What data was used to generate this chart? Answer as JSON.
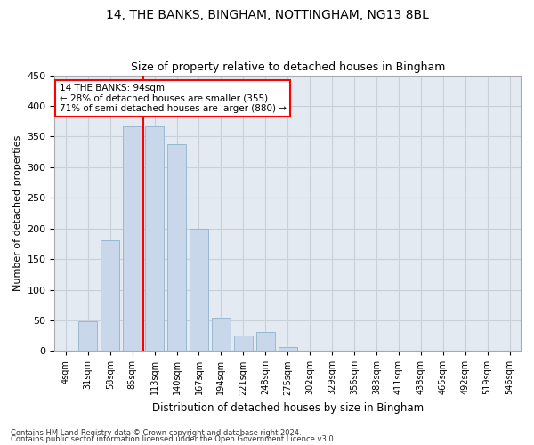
{
  "title": "14, THE BANKS, BINGHAM, NOTTINGHAM, NG13 8BL",
  "subtitle": "Size of property relative to detached houses in Bingham",
  "xlabel": "Distribution of detached houses by size in Bingham",
  "ylabel": "Number of detached properties",
  "bar_color": "#c8d8ea",
  "bar_edgecolor": "#9ab8d0",
  "grid_color": "#c8d0dc",
  "bg_color": "#e4eaf2",
  "categories": [
    "4sqm",
    "31sqm",
    "58sqm",
    "85sqm",
    "113sqm",
    "140sqm",
    "167sqm",
    "194sqm",
    "221sqm",
    "248sqm",
    "275sqm",
    "302sqm",
    "329sqm",
    "356sqm",
    "383sqm",
    "411sqm",
    "438sqm",
    "465sqm",
    "492sqm",
    "519sqm",
    "546sqm"
  ],
  "values": [
    1,
    49,
    180,
    367,
    367,
    338,
    199,
    54,
    25,
    31,
    6,
    0,
    0,
    0,
    0,
    0,
    0,
    0,
    0,
    0,
    1
  ],
  "ylim": [
    0,
    450
  ],
  "yticks": [
    0,
    50,
    100,
    150,
    200,
    250,
    300,
    350,
    400,
    450
  ],
  "red_line_index": 3.5,
  "annotation_text": "14 THE BANKS: 94sqm\n← 28% of detached houses are smaller (355)\n71% of semi-detached houses are larger (880) →",
  "footer_line1": "Contains HM Land Registry data © Crown copyright and database right 2024.",
  "footer_line2": "Contains public sector information licensed under the Open Government Licence v3.0."
}
